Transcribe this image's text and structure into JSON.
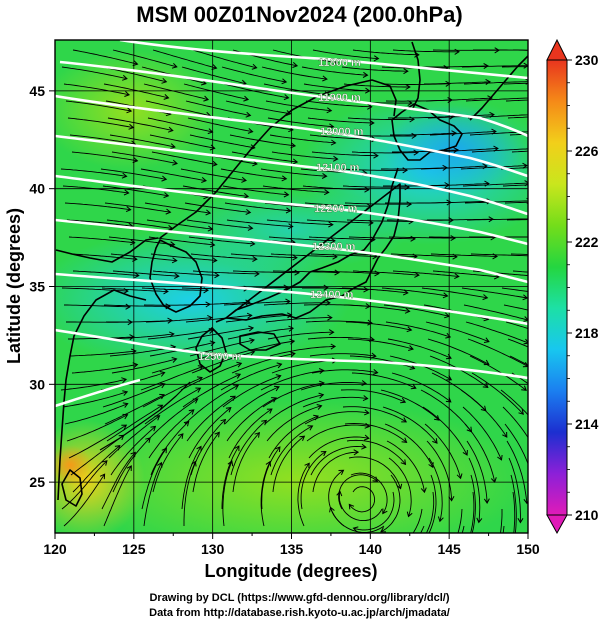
{
  "title": "MSM 00Z01Nov2024 (200.0hPa)",
  "axes": {
    "xlabel": "Longitude (degrees)",
    "ylabel": "Latitude  (degrees)",
    "x_ticks": [
      "120",
      "125",
      "130",
      "135",
      "140",
      "145",
      "150"
    ],
    "y_ticks": [
      "25",
      "30",
      "35",
      "40",
      "45"
    ],
    "x_range": [
      120,
      150
    ],
    "y_range": [
      22.4,
      47.6
    ]
  },
  "colorbar": {
    "ticks": [
      "230",
      "226",
      "222",
      "218",
      "214",
      "210"
    ],
    "range": [
      210,
      230
    ],
    "colors": [
      "#e01bb8",
      "#8c20d8",
      "#1c2fd0",
      "#1b7ff0",
      "#18c7ef",
      "#1de0a5",
      "#24d640",
      "#74dd1a",
      "#c9e61d",
      "#f2cf1a",
      "#f58a18",
      "#e8351e"
    ]
  },
  "contour_labels": [
    "11800 m",
    "11900 m",
    "12000 m",
    "12100 m",
    "12200 m",
    "12300 m",
    "12400 m",
    "12500 m"
  ],
  "colors": {
    "grid": "#000000",
    "contour": "#ffffff",
    "stream": "#000000",
    "coast": "#000000"
  },
  "credits": {
    "line1": "Drawing by DCL (https://www.gfd-dennou.org/library/dcl/)",
    "line2": "Data from http://database.rish.kyoto-u.ac.jp/arch/jmadata/"
  }
}
